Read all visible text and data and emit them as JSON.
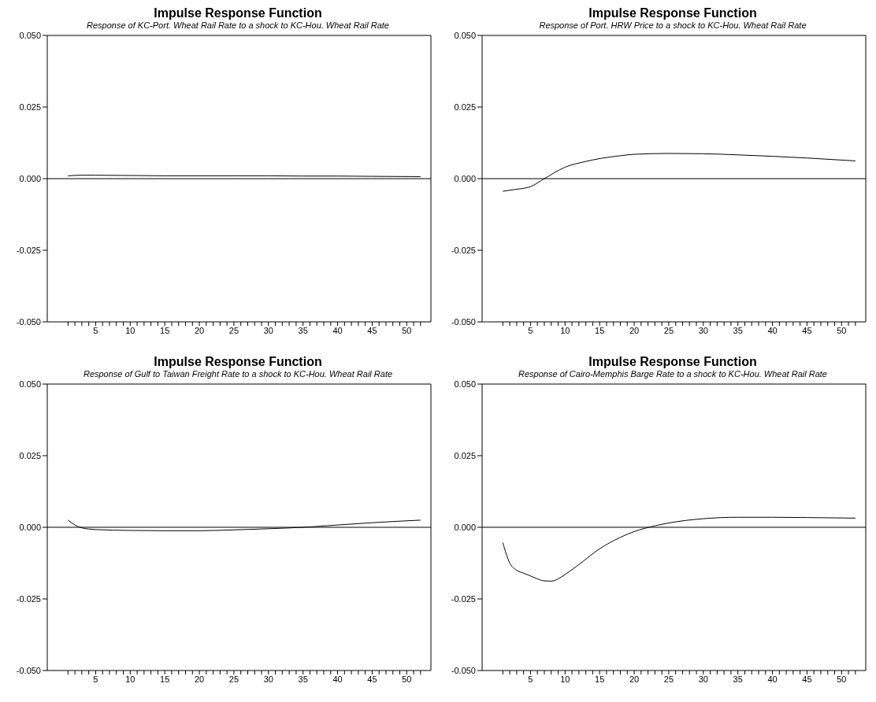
{
  "chart_data": [
    {
      "type": "line",
      "title": "Impulse Response Function",
      "subtitle": "Response of KC-Port. Wheat Rail Rate to a shock to KC-Hou. Wheat Rail Rate",
      "series": [
        {
          "color": "#000000",
          "x": [
            1,
            3,
            5,
            10,
            15,
            20,
            25,
            30,
            35,
            40,
            45,
            52
          ],
          "values": [
            0.001,
            0.0012,
            0.0012,
            0.0011,
            0.001,
            0.001,
            0.001,
            0.001,
            0.0009,
            0.0009,
            0.0008,
            0.0007
          ]
        }
      ],
      "xlim": [
        -2,
        53.5
      ],
      "ylim": [
        -0.05,
        0.05
      ],
      "yticks": [
        {
          "value": -0.05,
          "label": "-0.050"
        },
        {
          "value": -0.025,
          "label": "-0.025"
        },
        {
          "value": 0,
          "label": "0.000"
        },
        {
          "value": 0.025,
          "label": "0.025"
        },
        {
          "value": 0.05,
          "label": "0.050"
        }
      ],
      "xticks": [
        {
          "value": 1,
          "label": null
        },
        {
          "value": 2,
          "label": null
        },
        {
          "value": 3,
          "label": null
        },
        {
          "value": 4,
          "label": null
        },
        5,
        {
          "value": 6,
          "label": null
        },
        {
          "value": 7,
          "label": null
        },
        {
          "value": 8,
          "label": null
        },
        {
          "value": 9,
          "label": null
        },
        10,
        {
          "value": 11,
          "label": null
        },
        {
          "value": 12,
          "label": null
        },
        {
          "value": 13,
          "label": null
        },
        {
          "value": 14,
          "label": null
        },
        15,
        {
          "value": 16,
          "label": null
        },
        {
          "value": 17,
          "label": null
        },
        {
          "value": 18,
          "label": null
        },
        {
          "value": 19,
          "label": null
        },
        20,
        {
          "value": 21,
          "label": null
        },
        {
          "value": 22,
          "label": null
        },
        {
          "value": 23,
          "label": null
        },
        {
          "value": 24,
          "label": null
        },
        25,
        {
          "value": 26,
          "label": null
        },
        {
          "value": 27,
          "label": null
        },
        {
          "value": 28,
          "label": null
        },
        {
          "value": 29,
          "label": null
        },
        30,
        {
          "value": 31,
          "label": null
        },
        {
          "value": 32,
          "label": null
        },
        {
          "value": 33,
          "label": null
        },
        {
          "value": 34,
          "label": null
        },
        35,
        {
          "value": 36,
          "label": null
        },
        {
          "value": 37,
          "label": null
        },
        {
          "value": 38,
          "label": null
        },
        {
          "value": 39,
          "label": null
        },
        40,
        {
          "value": 41,
          "label": null
        },
        {
          "value": 42,
          "label": null
        },
        {
          "value": 43,
          "label": null
        },
        {
          "value": 44,
          "label": null
        },
        45,
        {
          "value": 46,
          "label": null
        },
        {
          "value": 47,
          "label": null
        },
        {
          "value": 48,
          "label": null
        },
        {
          "value": 49,
          "label": null
        },
        50,
        {
          "value": 51,
          "label": null
        },
        {
          "value": 52,
          "label": null
        }
      ],
      "ref_lines": [
        {
          "axis": "y",
          "value": 0,
          "color": "#000000"
        }
      ],
      "marker": "none",
      "line_style": "solid"
    },
    {
      "type": "line",
      "title": "Impulse Response Function",
      "subtitle": "Response of Port. HRW Price to a shock to KC-Hou. Wheat Rail Rate",
      "series": [
        {
          "color": "#000000",
          "x": [
            1,
            3,
            5,
            7,
            10,
            13,
            15,
            18,
            20,
            25,
            30,
            35,
            40,
            45,
            52
          ],
          "values": [
            -0.0044,
            -0.0037,
            -0.0028,
            0,
            0.004,
            0.006,
            0.007,
            0.008,
            0.0085,
            0.0088,
            0.0087,
            0.0083,
            0.0078,
            0.0072,
            0.0062
          ]
        }
      ],
      "xlim": [
        -2,
        53.5
      ],
      "ylim": [
        -0.05,
        0.05
      ],
      "yticks": [
        {
          "value": -0.05,
          "label": "-0.050"
        },
        {
          "value": -0.025,
          "label": "-0.025"
        },
        {
          "value": 0,
          "label": "0.000"
        },
        {
          "value": 0.025,
          "label": "0.025"
        },
        {
          "value": 0.05,
          "label": "0.050"
        }
      ],
      "xticks": [
        {
          "value": 1,
          "label": null
        },
        {
          "value": 2,
          "label": null
        },
        {
          "value": 3,
          "label": null
        },
        {
          "value": 4,
          "label": null
        },
        5,
        {
          "value": 6,
          "label": null
        },
        {
          "value": 7,
          "label": null
        },
        {
          "value": 8,
          "label": null
        },
        {
          "value": 9,
          "label": null
        },
        10,
        {
          "value": 11,
          "label": null
        },
        {
          "value": 12,
          "label": null
        },
        {
          "value": 13,
          "label": null
        },
        {
          "value": 14,
          "label": null
        },
        15,
        {
          "value": 16,
          "label": null
        },
        {
          "value": 17,
          "label": null
        },
        {
          "value": 18,
          "label": null
        },
        {
          "value": 19,
          "label": null
        },
        20,
        {
          "value": 21,
          "label": null
        },
        {
          "value": 22,
          "label": null
        },
        {
          "value": 23,
          "label": null
        },
        {
          "value": 24,
          "label": null
        },
        25,
        {
          "value": 26,
          "label": null
        },
        {
          "value": 27,
          "label": null
        },
        {
          "value": 28,
          "label": null
        },
        {
          "value": 29,
          "label": null
        },
        30,
        {
          "value": 31,
          "label": null
        },
        {
          "value": 32,
          "label": null
        },
        {
          "value": 33,
          "label": null
        },
        {
          "value": 34,
          "label": null
        },
        35,
        {
          "value": 36,
          "label": null
        },
        {
          "value": 37,
          "label": null
        },
        {
          "value": 38,
          "label": null
        },
        {
          "value": 39,
          "label": null
        },
        40,
        {
          "value": 41,
          "label": null
        },
        {
          "value": 42,
          "label": null
        },
        {
          "value": 43,
          "label": null
        },
        {
          "value": 44,
          "label": null
        },
        45,
        {
          "value": 46,
          "label": null
        },
        {
          "value": 47,
          "label": null
        },
        {
          "value": 48,
          "label": null
        },
        {
          "value": 49,
          "label": null
        },
        50,
        {
          "value": 51,
          "label": null
        },
        {
          "value": 52,
          "label": null
        }
      ],
      "ref_lines": [
        {
          "axis": "y",
          "value": 0,
          "color": "#000000"
        }
      ],
      "marker": "none",
      "line_style": "solid"
    },
    {
      "type": "line",
      "title": "Impulse Response Function",
      "subtitle": "Response of Gulf to Taiwan Freight Rate to a shock to KC-Hou. Wheat Rail Rate",
      "series": [
        {
          "color": "#000000",
          "x": [
            1,
            2,
            3,
            4,
            5,
            10,
            15,
            20,
            25,
            30,
            35,
            40,
            45,
            52
          ],
          "values": [
            0.0025,
            0.0008,
            -0.0002,
            -0.0006,
            -0.0008,
            -0.0011,
            -0.0012,
            -0.0012,
            -0.0009,
            -0.0005,
            0,
            0.0008,
            0.0016,
            0.0025
          ]
        }
      ],
      "xlim": [
        -2,
        53.5
      ],
      "ylim": [
        -0.05,
        0.05
      ],
      "yticks": [
        {
          "value": -0.05,
          "label": "-0.050"
        },
        {
          "value": -0.025,
          "label": "-0.025"
        },
        {
          "value": 0,
          "label": "0.000"
        },
        {
          "value": 0.025,
          "label": "0.025"
        },
        {
          "value": 0.05,
          "label": "0.050"
        }
      ],
      "xticks": [
        {
          "value": 1,
          "label": null
        },
        {
          "value": 2,
          "label": null
        },
        {
          "value": 3,
          "label": null
        },
        {
          "value": 4,
          "label": null
        },
        5,
        {
          "value": 6,
          "label": null
        },
        {
          "value": 7,
          "label": null
        },
        {
          "value": 8,
          "label": null
        },
        {
          "value": 9,
          "label": null
        },
        10,
        {
          "value": 11,
          "label": null
        },
        {
          "value": 12,
          "label": null
        },
        {
          "value": 13,
          "label": null
        },
        {
          "value": 14,
          "label": null
        },
        15,
        {
          "value": 16,
          "label": null
        },
        {
          "value": 17,
          "label": null
        },
        {
          "value": 18,
          "label": null
        },
        {
          "value": 19,
          "label": null
        },
        20,
        {
          "value": 21,
          "label": null
        },
        {
          "value": 22,
          "label": null
        },
        {
          "value": 23,
          "label": null
        },
        {
          "value": 24,
          "label": null
        },
        25,
        {
          "value": 26,
          "label": null
        },
        {
          "value": 27,
          "label": null
        },
        {
          "value": 28,
          "label": null
        },
        {
          "value": 29,
          "label": null
        },
        30,
        {
          "value": 31,
          "label": null
        },
        {
          "value": 32,
          "label": null
        },
        {
          "value": 33,
          "label": null
        },
        {
          "value": 34,
          "label": null
        },
        35,
        {
          "value": 36,
          "label": null
        },
        {
          "value": 37,
          "label": null
        },
        {
          "value": 38,
          "label": null
        },
        {
          "value": 39,
          "label": null
        },
        40,
        {
          "value": 41,
          "label": null
        },
        {
          "value": 42,
          "label": null
        },
        {
          "value": 43,
          "label": null
        },
        {
          "value": 44,
          "label": null
        },
        45,
        {
          "value": 46,
          "label": null
        },
        {
          "value": 47,
          "label": null
        },
        {
          "value": 48,
          "label": null
        },
        {
          "value": 49,
          "label": null
        },
        50,
        {
          "value": 51,
          "label": null
        },
        {
          "value": 52,
          "label": null
        }
      ],
      "ref_lines": [
        {
          "axis": "y",
          "value": 0,
          "color": "#000000"
        }
      ],
      "marker": "none",
      "line_style": "solid"
    },
    {
      "type": "line",
      "title": "Impulse Response Function",
      "subtitle": "Response of Cairo-Memphis Barge Rate to a shock to KC-Hou. Wheat Rail Rate",
      "series": [
        {
          "color": "#000000",
          "x": [
            1,
            2,
            3,
            4,
            5,
            6,
            7,
            8,
            9,
            10,
            12,
            15,
            18,
            20,
            23,
            25,
            30,
            35,
            40,
            45,
            52
          ],
          "values": [
            -0.0054,
            -0.0125,
            -0.015,
            -0.016,
            -0.017,
            -0.018,
            -0.0187,
            -0.0188,
            -0.018,
            -0.0165,
            -0.013,
            -0.0075,
            -0.0035,
            -0.0015,
            0.0005,
            0.0015,
            0.003,
            0.0035,
            0.0035,
            0.0034,
            0.0032
          ]
        }
      ],
      "xlim": [
        -2,
        53.5
      ],
      "ylim": [
        -0.05,
        0.05
      ],
      "yticks": [
        {
          "value": -0.05,
          "label": "-0.050"
        },
        {
          "value": -0.025,
          "label": "-0.025"
        },
        {
          "value": 0,
          "label": "0.000"
        },
        {
          "value": 0.025,
          "label": "0.025"
        },
        {
          "value": 0.05,
          "label": "0.050"
        }
      ],
      "xticks": [
        {
          "value": 1,
          "label": null
        },
        {
          "value": 2,
          "label": null
        },
        {
          "value": 3,
          "label": null
        },
        {
          "value": 4,
          "label": null
        },
        5,
        {
          "value": 6,
          "label": null
        },
        {
          "value": 7,
          "label": null
        },
        {
          "value": 8,
          "label": null
        },
        {
          "value": 9,
          "label": null
        },
        10,
        {
          "value": 11,
          "label": null
        },
        {
          "value": 12,
          "label": null
        },
        {
          "value": 13,
          "label": null
        },
        {
          "value": 14,
          "label": null
        },
        15,
        {
          "value": 16,
          "label": null
        },
        {
          "value": 17,
          "label": null
        },
        {
          "value": 18,
          "label": null
        },
        {
          "value": 19,
          "label": null
        },
        20,
        {
          "value": 21,
          "label": null
        },
        {
          "value": 22,
          "label": null
        },
        {
          "value": 23,
          "label": null
        },
        {
          "value": 24,
          "label": null
        },
        25,
        {
          "value": 26,
          "label": null
        },
        {
          "value": 27,
          "label": null
        },
        {
          "value": 28,
          "label": null
        },
        {
          "value": 29,
          "label": null
        },
        30,
        {
          "value": 31,
          "label": null
        },
        {
          "value": 32,
          "label": null
        },
        {
          "value": 33,
          "label": null
        },
        {
          "value": 34,
          "label": null
        },
        35,
        {
          "value": 36,
          "label": null
        },
        {
          "value": 37,
          "label": null
        },
        {
          "value": 38,
          "label": null
        },
        {
          "value": 39,
          "label": null
        },
        40,
        {
          "value": 41,
          "label": null
        },
        {
          "value": 42,
          "label": null
        },
        {
          "value": 43,
          "label": null
        },
        {
          "value": 44,
          "label": null
        },
        45,
        {
          "value": 46,
          "label": null
        },
        {
          "value": 47,
          "label": null
        },
        {
          "value": 48,
          "label": null
        },
        {
          "value": 49,
          "label": null
        },
        50,
        {
          "value": 51,
          "label": null
        },
        {
          "value": 52,
          "label": null
        }
      ],
      "ref_lines": [
        {
          "axis": "y",
          "value": 0,
          "color": "#000000"
        }
      ],
      "marker": "none",
      "line_style": "solid"
    }
  ]
}
